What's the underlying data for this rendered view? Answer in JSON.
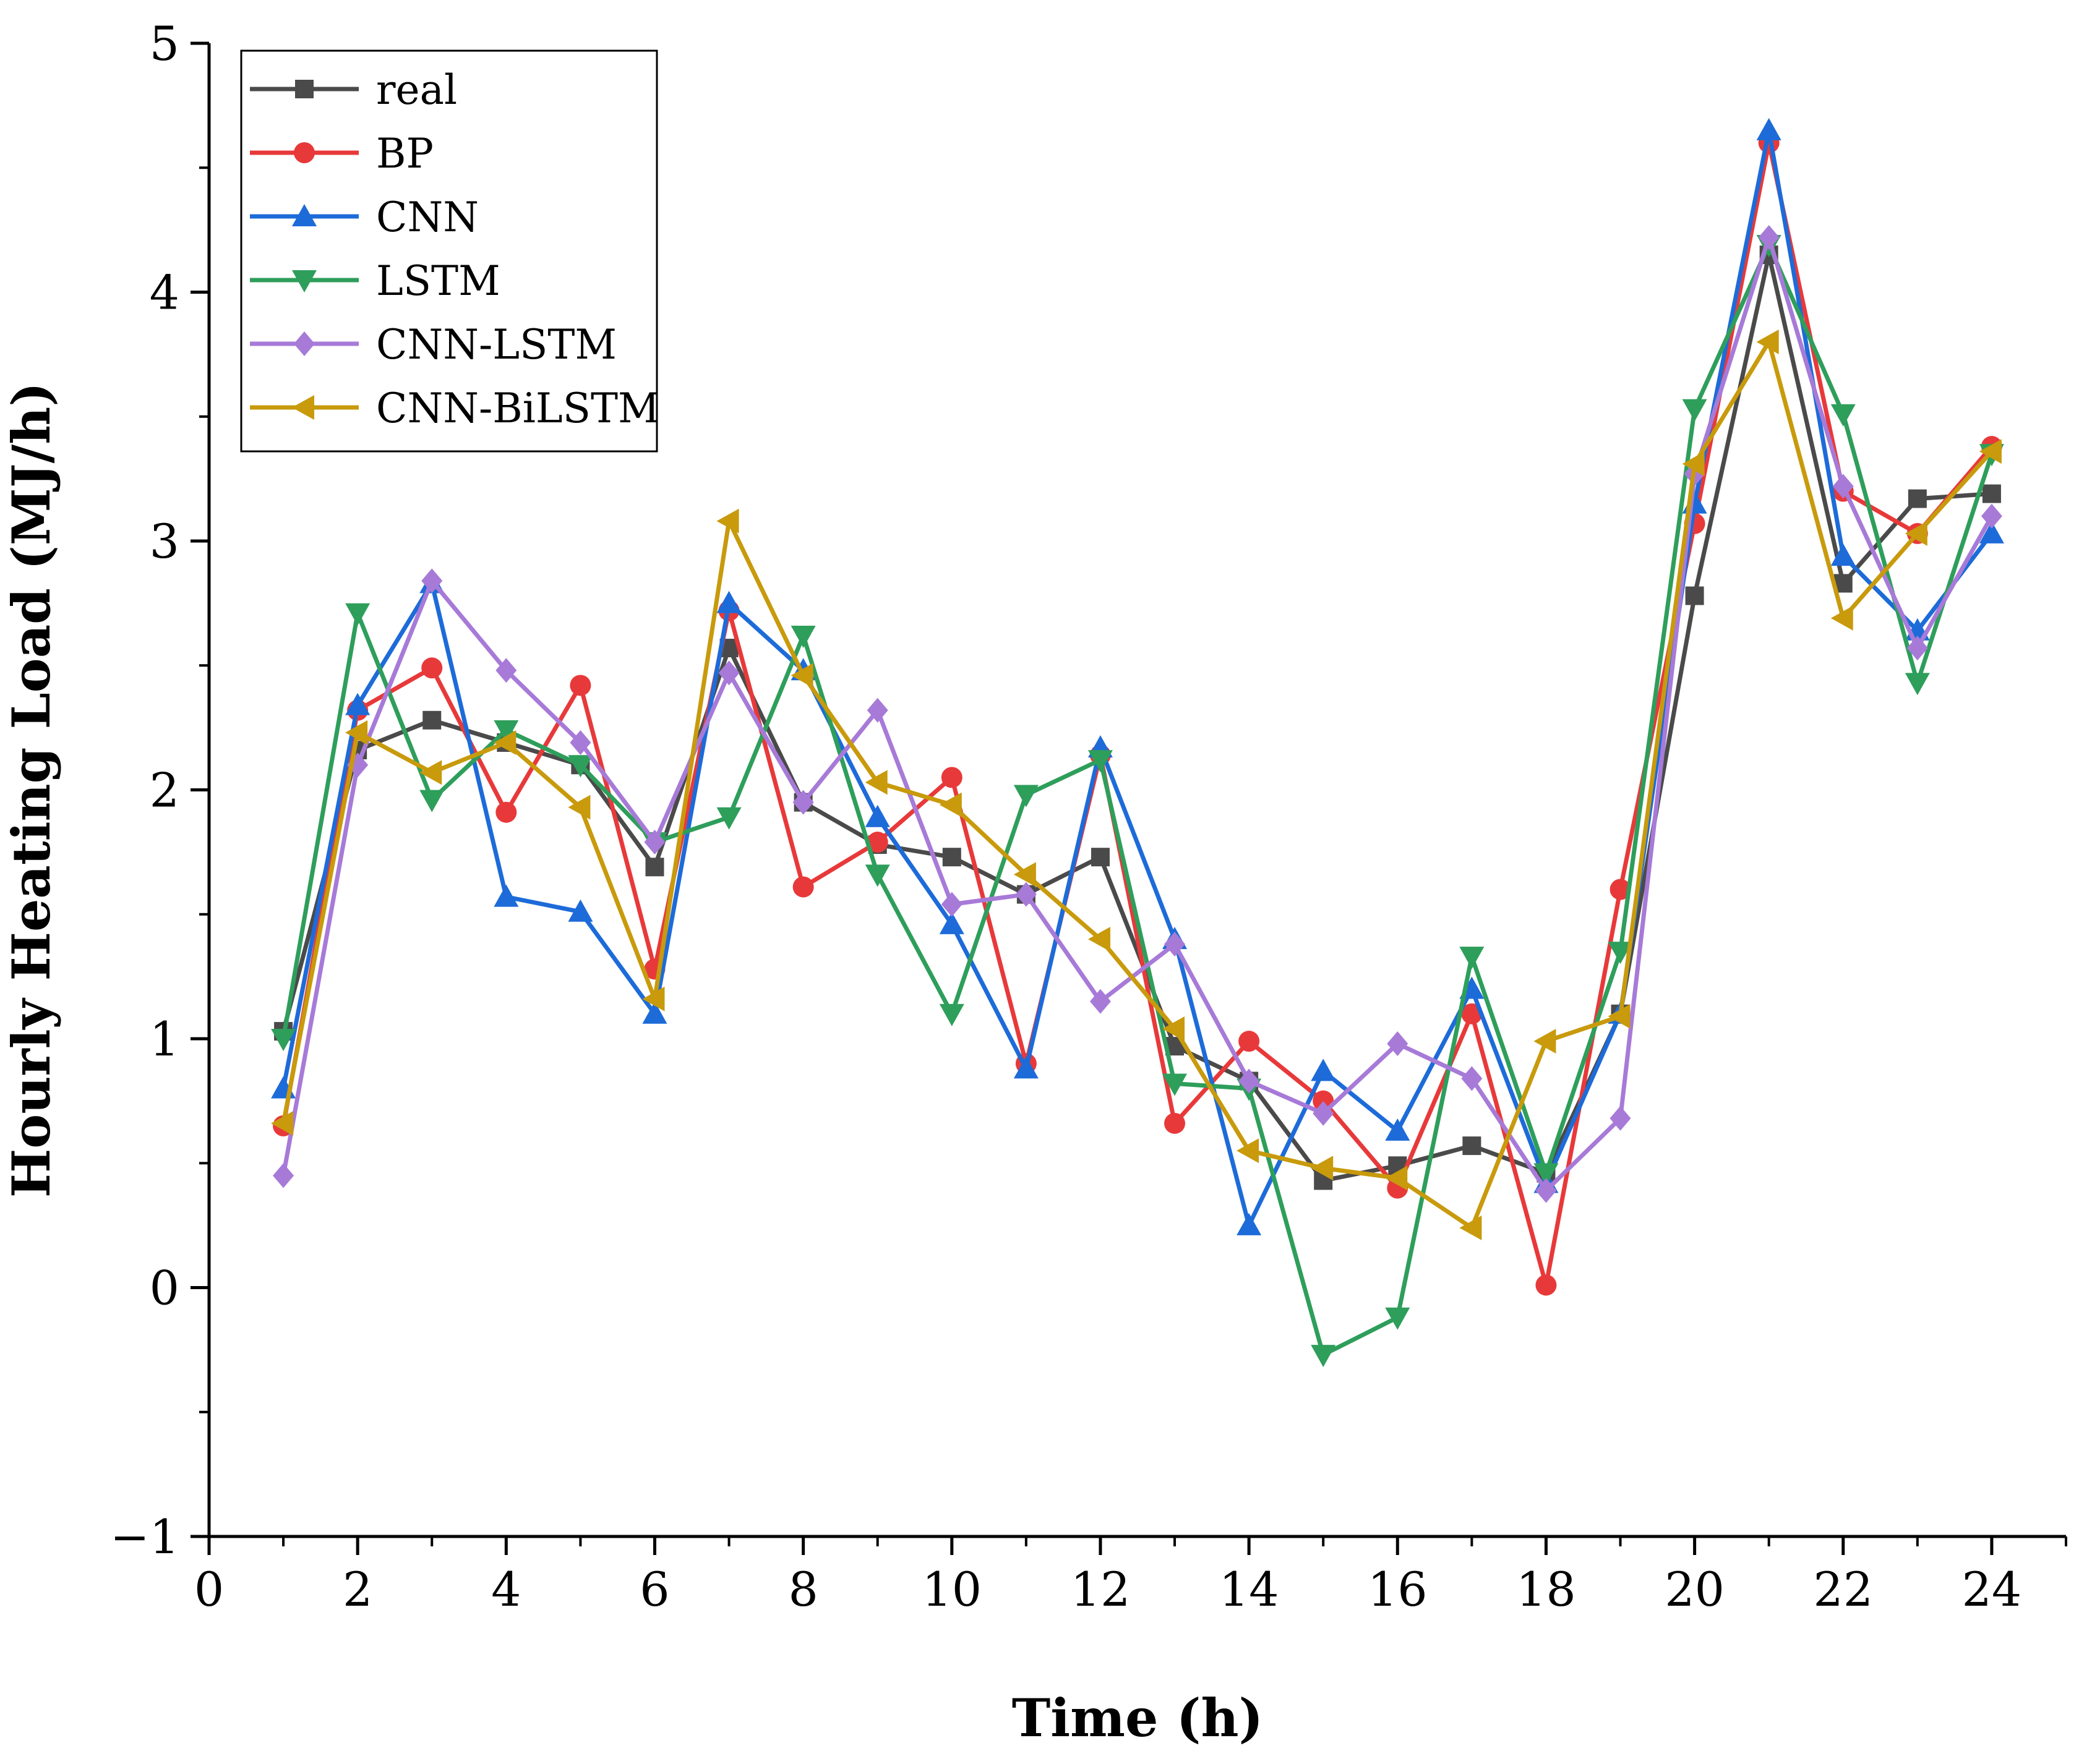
{
  "chart_data": {
    "type": "line",
    "title": "",
    "xlabel": "Time (h)",
    "ylabel": "Hourly Heating Load (MJ/h)",
    "xlim": [
      0,
      25
    ],
    "ylim": [
      -1,
      5
    ],
    "xticks": [
      "0",
      "2",
      "4",
      "6",
      "8",
      "10",
      "12",
      "14",
      "16",
      "18",
      "20",
      "22",
      "24"
    ],
    "yticks": [
      "−1",
      "0",
      "1",
      "2",
      "3",
      "4",
      "5"
    ],
    "grid": false,
    "legend_position": "top-left",
    "x": [
      1,
      2,
      3,
      4,
      5,
      6,
      7,
      8,
      9,
      10,
      11,
      12,
      13,
      14,
      15,
      16,
      17,
      18,
      19,
      20,
      21,
      22,
      23,
      24
    ],
    "series": [
      {
        "name": "real",
        "color": "#4a4a4a",
        "marker": "square",
        "values": [
          1.03,
          2.16,
          2.28,
          2.19,
          2.1,
          1.69,
          2.57,
          1.95,
          1.78,
          1.73,
          1.58,
          1.73,
          0.97,
          0.83,
          0.43,
          0.49,
          0.57,
          0.46,
          1.1,
          2.78,
          4.15,
          2.83,
          3.17,
          3.19
        ]
      },
      {
        "name": "BP",
        "color": "#e8393a",
        "marker": "circle",
        "values": [
          0.65,
          2.32,
          2.49,
          1.91,
          2.42,
          1.28,
          2.72,
          1.61,
          1.79,
          2.05,
          0.9,
          2.14,
          0.66,
          0.99,
          0.75,
          0.4,
          1.1,
          0.01,
          1.6,
          3.07,
          4.6,
          3.2,
          3.03,
          3.38
        ]
      },
      {
        "name": "CNN",
        "color": "#1d6bd9",
        "marker": "triangle-up",
        "values": [
          0.8,
          2.34,
          2.83,
          1.57,
          1.51,
          1.1,
          2.75,
          2.48,
          1.89,
          1.46,
          0.88,
          2.17,
          1.4,
          0.25,
          0.87,
          0.63,
          1.2,
          0.42,
          1.1,
          3.15,
          4.65,
          2.94,
          2.64,
          3.03
        ]
      },
      {
        "name": "LSTM",
        "color": "#2e9e5b",
        "marker": "triangle-down",
        "values": [
          1.0,
          2.71,
          1.96,
          2.24,
          2.1,
          1.79,
          1.89,
          2.62,
          1.66,
          1.1,
          1.98,
          2.12,
          0.82,
          0.8,
          -0.27,
          -0.12,
          1.33,
          0.46,
          1.35,
          3.53,
          4.19,
          3.51,
          2.43,
          3.35
        ]
      },
      {
        "name": "CNN-LSTM",
        "color": "#a77ad8",
        "marker": "diamond",
        "values": [
          0.45,
          2.1,
          2.84,
          2.48,
          2.19,
          1.79,
          2.47,
          1.95,
          2.32,
          1.54,
          1.58,
          1.15,
          1.38,
          0.83,
          0.7,
          0.98,
          0.84,
          0.39,
          0.68,
          3.27,
          4.22,
          3.22,
          2.57,
          3.1
        ]
      },
      {
        "name": "CNN-BiLSTM",
        "color": "#c89a0c",
        "marker": "triangle-left",
        "values": [
          0.66,
          2.23,
          2.07,
          2.19,
          1.93,
          1.16,
          3.08,
          2.46,
          2.03,
          1.94,
          1.66,
          1.4,
          1.04,
          0.55,
          0.48,
          0.44,
          0.24,
          0.99,
          1.09,
          3.31,
          3.8,
          2.69,
          3.03,
          3.36
        ]
      }
    ]
  }
}
